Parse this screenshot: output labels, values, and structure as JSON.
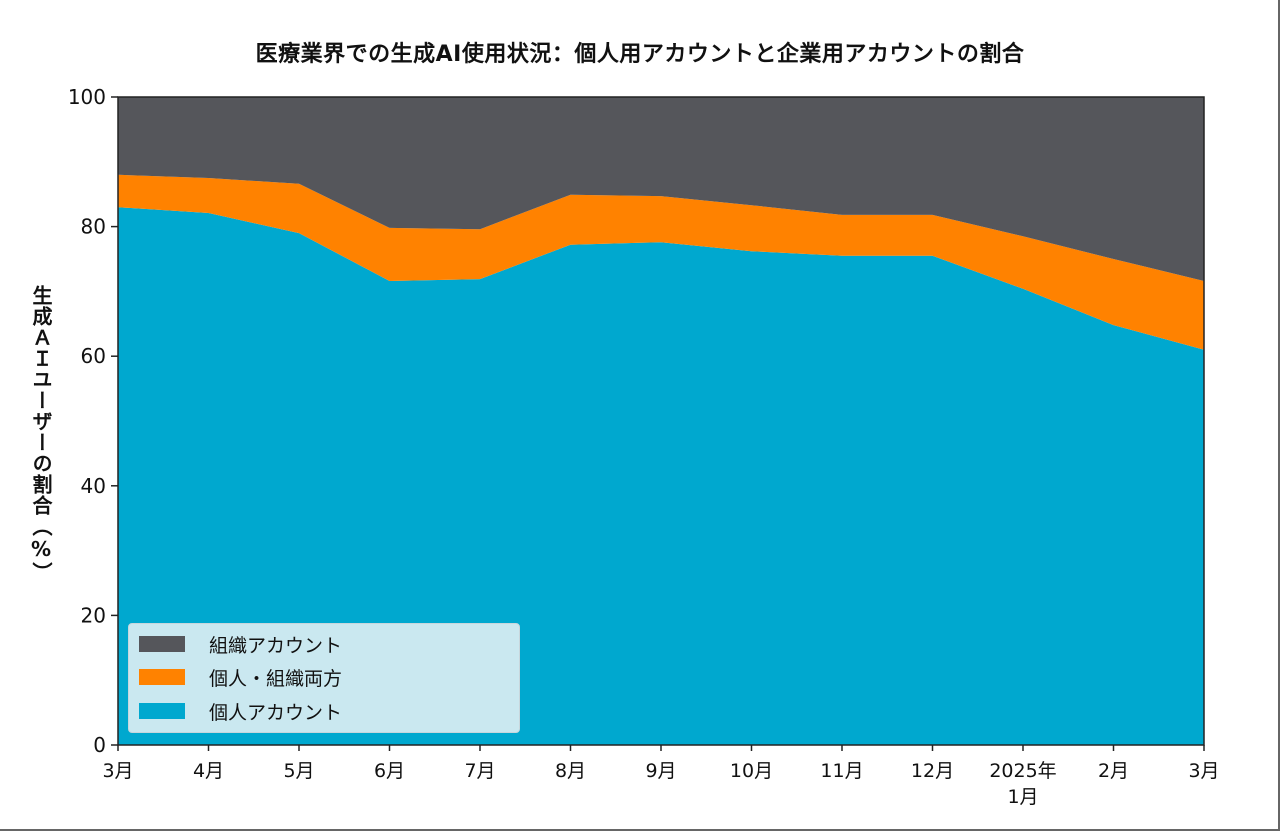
{
  "chart_data": {
    "type": "area",
    "stacked": true,
    "title": "医療業界での生成AI使用状況：個人用アカウントと企業用アカウントの割合",
    "xlabel": "",
    "ylabel": "生成ＡＩユーザーの割合（%）",
    "ylim": [
      0,
      100
    ],
    "yticks": [
      "0",
      "20",
      "40",
      "60",
      "80",
      "100"
    ],
    "categories": [
      "3月",
      "4月",
      "5月",
      "6月",
      "7月",
      "8月",
      "9月",
      "10月",
      "11月",
      "12月",
      "2025年\n1月",
      "2月",
      "3月"
    ],
    "category_lines": [
      [
        "3月"
      ],
      [
        "4月"
      ],
      [
        "5月"
      ],
      [
        "6月"
      ],
      [
        "7月"
      ],
      [
        "8月"
      ],
      [
        "9月"
      ],
      [
        "10月"
      ],
      [
        "11月"
      ],
      [
        "12月"
      ],
      [
        "2025年",
        "1月"
      ],
      [
        "2月"
      ],
      [
        "3月"
      ]
    ],
    "series": [
      {
        "name": "個人アカウント",
        "color": "#00A8CF",
        "values": [
          83.0,
          82.1,
          79.0,
          71.6,
          71.9,
          77.2,
          77.6,
          76.2,
          75.5,
          75.5,
          70.4,
          64.8,
          61.0
        ]
      },
      {
        "name": "個人・組織両方",
        "color": "#FF8200",
        "values": [
          5.0,
          5.4,
          7.6,
          8.2,
          7.7,
          7.7,
          7.1,
          7.1,
          6.3,
          6.3,
          8.1,
          10.2,
          10.6
        ]
      },
      {
        "name": "組織アカウント",
        "color": "#55565B",
        "values": [
          12.0,
          12.5,
          13.4,
          20.2,
          20.4,
          15.1,
          15.3,
          16.7,
          18.2,
          18.2,
          21.5,
          25.0,
          28.4
        ]
      }
    ],
    "legend": {
      "position": "lower-left",
      "entries": [
        {
          "label": "組織アカウント",
          "color": "#55565B"
        },
        {
          "label": "個人・組織両方",
          "color": "#FF8200"
        },
        {
          "label": "個人アカウント",
          "color": "#00A8CF"
        }
      ]
    },
    "grid": false
  }
}
